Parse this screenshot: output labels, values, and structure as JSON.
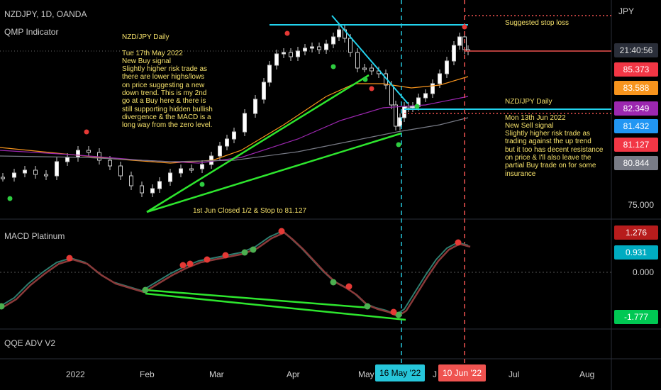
{
  "header": {
    "symbol": "NZDJPY, 1D, OANDA",
    "indicator": "QMP Indicator"
  },
  "notes": {
    "buy": "NZD/JPY Daily\n\nTue 17th May 2022\nNew Buy signal\nSlightly higher risk trade as\nthere are lower highs/lows\non price suggesting a new\ndown trend. This is my 2nd\ngo at a Buy here & there is\nstill supporting hidden bullish\ndivergence & the MACD is a\nlong way from the zero level.",
    "sell": "NZD/JPY Daily\n\nMon 13th Jun 2022\nNew Sell signal\nSlightly higher risk trade as\ntrading against the up trend\nbut it too has decent resistance\non price & I'll also leave the\npartial Buy trade on for some\ninsurance",
    "stop": "Suggested stop loss",
    "closed": "1st Jun Closed 1/2 & Stop to 81.127"
  },
  "panes": {
    "macd_title": "MACD Platinum",
    "qqe_title": "QQE ADV V2"
  },
  "price_axis": {
    "currency": "JPY",
    "time": "21:40:56",
    "level_75": "75.000",
    "badges": [
      {
        "value": "85.373",
        "color": "#f23645"
      },
      {
        "value": "83.588",
        "color": "#f7941d"
      },
      {
        "value": "82.349",
        "color": "#9c27b0"
      },
      {
        "value": "81.432",
        "color": "#2196f3"
      },
      {
        "value": "81.127",
        "color": "#f23645"
      },
      {
        "value": "80.844",
        "color": "#787b86"
      }
    ]
  },
  "macd_axis": {
    "values": [
      {
        "value": "1.276",
        "color": "#b71c1c"
      },
      {
        "value": "0.931",
        "color": "#00acc1"
      },
      {
        "value": "-1.777",
        "color": "#00c853"
      }
    ],
    "zero": "0.000"
  },
  "time_axis": {
    "labels": [
      "2022",
      "Feb",
      "Mar",
      "Apr",
      "May",
      "J",
      "Jul",
      "Aug"
    ],
    "marker_blue": "16 May '22",
    "marker_red": "10 Jun '22"
  },
  "colors": {
    "buy_marker": "#26c6da",
    "sell_marker": "#ef5350",
    "trendline_green": "#2ee62e",
    "resistance_cyan": "#22d3ee",
    "note_text": "#f4e06a",
    "background": "#000000"
  }
}
